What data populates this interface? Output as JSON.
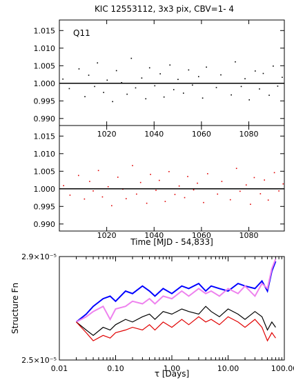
{
  "chart_data": [
    {
      "type": "scatter",
      "title": "KIC 12553112,  3x3 pix, CBV=1- 4",
      "annotation": "Q11",
      "color": "#000000",
      "xlim": [
        1000,
        1095
      ],
      "ylim": [
        0.988,
        1.018
      ],
      "y_ticks": [
        "1.015",
        "1.010",
        "1.005",
        "1.000",
        "0.995",
        "0.990"
      ],
      "x_ticks_top": [
        "1020",
        "1040",
        "1060",
        "1080"
      ],
      "reference_line": 1.0,
      "points": [
        [
          1001.5,
          1.0012
        ],
        [
          1004.2,
          0.9985
        ],
        [
          1008.3,
          1.0041
        ],
        [
          1010.8,
          0.9962
        ],
        [
          1012.4,
          1.0023
        ],
        [
          1014.9,
          0.9991
        ],
        [
          1016.1,
          1.0058
        ],
        [
          1018.7,
          0.9974
        ],
        [
          1020.2,
          1.0009
        ],
        [
          1022.5,
          0.9948
        ],
        [
          1024.1,
          1.0036
        ],
        [
          1026.3,
          1.0002
        ],
        [
          1028.6,
          0.9969
        ],
        [
          1030.4,
          1.0071
        ],
        [
          1032.2,
          0.9987
        ],
        [
          1034.8,
          1.0015
        ],
        [
          1036.5,
          0.9956
        ],
        [
          1038.1,
          1.0044
        ],
        [
          1040.3,
          0.9993
        ],
        [
          1042.6,
          1.0027
        ],
        [
          1044.2,
          0.9961
        ],
        [
          1046.7,
          1.0052
        ],
        [
          1048.3,
          0.9982
        ],
        [
          1050.1,
          1.0011
        ],
        [
          1052.4,
          0.9972
        ],
        [
          1054.6,
          1.0038
        ],
        [
          1056.2,
          0.9995
        ],
        [
          1058.8,
          1.0019
        ],
        [
          1060.5,
          0.9958
        ],
        [
          1062.1,
          1.0046
        ],
        [
          1066.3,
          0.9988
        ],
        [
          1068.2,
          1.0024
        ],
        [
          1072.6,
          0.9967
        ],
        [
          1074.3,
          1.0061
        ],
        [
          1076.8,
          0.9991
        ],
        [
          1078.4,
          1.0013
        ],
        [
          1080.2,
          0.9953
        ],
        [
          1082.7,
          1.0035
        ],
        [
          1084.5,
          0.9984
        ],
        [
          1086.1,
          1.0028
        ],
        [
          1088.6,
          0.9966
        ],
        [
          1090.3,
          1.0049
        ],
        [
          1092.2,
          0.9992
        ],
        [
          1094.1,
          1.0017
        ]
      ]
    },
    {
      "type": "scatter",
      "color": "#e00000",
      "xlim": [
        1000,
        1095
      ],
      "ylim": [
        0.988,
        1.018
      ],
      "y_ticks": [
        "1.015",
        "1.010",
        "1.005",
        "1.000",
        "0.995",
        "0.990"
      ],
      "x_ticks": [
        "1020",
        "1040",
        "1060",
        "1080"
      ],
      "xlabel": "Time [MJD - 54,833]",
      "reference_line": 1.0,
      "points": [
        [
          1001.8,
          1.0009
        ],
        [
          1004.5,
          0.9982
        ],
        [
          1008.1,
          1.0038
        ],
        [
          1010.6,
          0.9971
        ],
        [
          1012.8,
          1.0021
        ],
        [
          1014.3,
          0.9994
        ],
        [
          1016.5,
          1.0052
        ],
        [
          1018.2,
          0.9977
        ],
        [
          1020.6,
          1.0006
        ],
        [
          1022.1,
          0.9952
        ],
        [
          1024.7,
          1.0033
        ],
        [
          1026.8,
          0.9999
        ],
        [
          1028.2,
          0.9972
        ],
        [
          1030.9,
          1.0066
        ],
        [
          1032.6,
          0.9985
        ],
        [
          1034.3,
          1.0018
        ],
        [
          1036.9,
          0.9959
        ],
        [
          1038.5,
          1.0041
        ],
        [
          1040.8,
          0.9996
        ],
        [
          1042.2,
          1.0024
        ],
        [
          1044.7,
          0.9964
        ],
        [
          1046.3,
          1.0049
        ],
        [
          1048.8,
          0.9984
        ],
        [
          1050.6,
          1.0008
        ],
        [
          1052.9,
          0.9975
        ],
        [
          1054.2,
          1.0035
        ],
        [
          1056.7,
          0.9997
        ],
        [
          1058.3,
          1.0016
        ],
        [
          1060.9,
          0.9961
        ],
        [
          1062.6,
          1.0043
        ],
        [
          1066.8,
          0.9985
        ],
        [
          1068.6,
          1.0021
        ],
        [
          1072.2,
          0.9969
        ],
        [
          1074.8,
          1.0058
        ],
        [
          1076.3,
          0.9993
        ],
        [
          1078.9,
          1.0011
        ],
        [
          1080.7,
          0.9956
        ],
        [
          1082.3,
          1.0032
        ],
        [
          1084.9,
          0.9986
        ],
        [
          1086.6,
          1.0025
        ],
        [
          1088.2,
          0.9968
        ],
        [
          1090.8,
          1.0046
        ],
        [
          1092.7,
          0.9994
        ],
        [
          1094.5,
          1.0014
        ]
      ]
    },
    {
      "type": "line",
      "ylabel": "Structure Fn",
      "xlabel": "τ [Days]",
      "x_scale": "log",
      "y_scale": "log",
      "xlim": [
        0.01,
        100
      ],
      "ylim": [
        2.5e-05,
        2.9e-05
      ],
      "x_ticks": [
        {
          "value": 0.01,
          "label": "0.01"
        },
        {
          "value": 0.1,
          "label": "0.10"
        },
        {
          "value": 1,
          "label": "1.00"
        },
        {
          "value": 10,
          "label": "10.00"
        },
        {
          "value": 100,
          "label": "100.00"
        }
      ],
      "y_ticks": [
        {
          "value": 2.5e-05,
          "label": "2.5×10⁻⁵"
        },
        {
          "value": 2.9e-05,
          "label": "2.9×10⁻⁵"
        }
      ],
      "series": [
        {
          "color": "#0000ff",
          "x": [
            0.02,
            0.03,
            0.04,
            0.06,
            0.08,
            0.1,
            0.15,
            0.2,
            0.3,
            0.4,
            0.5,
            0.7,
            1,
            1.5,
            2,
            3,
            4,
            5,
            7,
            10,
            15,
            20,
            30,
            40,
            50,
            60,
            70
          ],
          "y": [
            2.64e-05,
            2.67e-05,
            2.7e-05,
            2.73e-05,
            2.74e-05,
            2.72e-05,
            2.76e-05,
            2.75e-05,
            2.78e-05,
            2.76e-05,
            2.74e-05,
            2.77e-05,
            2.75e-05,
            2.78e-05,
            2.77e-05,
            2.79e-05,
            2.76e-05,
            2.78e-05,
            2.77e-05,
            2.76e-05,
            2.79e-05,
            2.78e-05,
            2.77e-05,
            2.8e-05,
            2.76e-05,
            2.84e-05,
            2.88e-05
          ]
        },
        {
          "color": "#ee82ee",
          "x": [
            0.02,
            0.03,
            0.04,
            0.06,
            0.08,
            0.1,
            0.15,
            0.2,
            0.3,
            0.4,
            0.5,
            0.7,
            1,
            1.5,
            2,
            3,
            4,
            5,
            7,
            10,
            15,
            20,
            30,
            40,
            50,
            60,
            70
          ],
          "y": [
            2.64e-05,
            2.66e-05,
            2.68e-05,
            2.7e-05,
            2.65e-05,
            2.69e-05,
            2.7e-05,
            2.72e-05,
            2.71e-05,
            2.73e-05,
            2.71e-05,
            2.74e-05,
            2.73e-05,
            2.76e-05,
            2.74e-05,
            2.77e-05,
            2.75e-05,
            2.76e-05,
            2.74e-05,
            2.77e-05,
            2.75e-05,
            2.78e-05,
            2.74e-05,
            2.79e-05,
            2.77e-05,
            2.85e-05,
            2.89e-05
          ]
        },
        {
          "color": "#000000",
          "x": [
            0.02,
            0.03,
            0.04,
            0.06,
            0.08,
            0.1,
            0.15,
            0.2,
            0.3,
            0.4,
            0.5,
            0.7,
            1,
            1.5,
            2,
            3,
            4,
            5,
            7,
            10,
            15,
            20,
            30,
            40,
            50,
            60,
            70
          ],
          "y": [
            2.64e-05,
            2.61e-05,
            2.59e-05,
            2.62e-05,
            2.61e-05,
            2.63e-05,
            2.65e-05,
            2.64e-05,
            2.66e-05,
            2.67e-05,
            2.65e-05,
            2.68e-05,
            2.67e-05,
            2.69e-05,
            2.68e-05,
            2.67e-05,
            2.7e-05,
            2.68e-05,
            2.66e-05,
            2.69e-05,
            2.67e-05,
            2.65e-05,
            2.68e-05,
            2.66e-05,
            2.61e-05,
            2.64e-05,
            2.62e-05
          ]
        },
        {
          "color": "#e00000",
          "x": [
            0.02,
            0.03,
            0.04,
            0.06,
            0.08,
            0.1,
            0.15,
            0.2,
            0.3,
            0.4,
            0.5,
            0.7,
            1,
            1.5,
            2,
            3,
            4,
            5,
            7,
            10,
            15,
            20,
            30,
            40,
            50,
            60,
            70
          ],
          "y": [
            2.64e-05,
            2.6e-05,
            2.57e-05,
            2.59e-05,
            2.58e-05,
            2.6e-05,
            2.61e-05,
            2.62e-05,
            2.61e-05,
            2.63e-05,
            2.61e-05,
            2.64e-05,
            2.62e-05,
            2.65e-05,
            2.63e-05,
            2.66e-05,
            2.64e-05,
            2.65e-05,
            2.63e-05,
            2.66e-05,
            2.64e-05,
            2.62e-05,
            2.65e-05,
            2.62e-05,
            2.57e-05,
            2.6e-05,
            2.58e-05
          ]
        }
      ]
    }
  ]
}
